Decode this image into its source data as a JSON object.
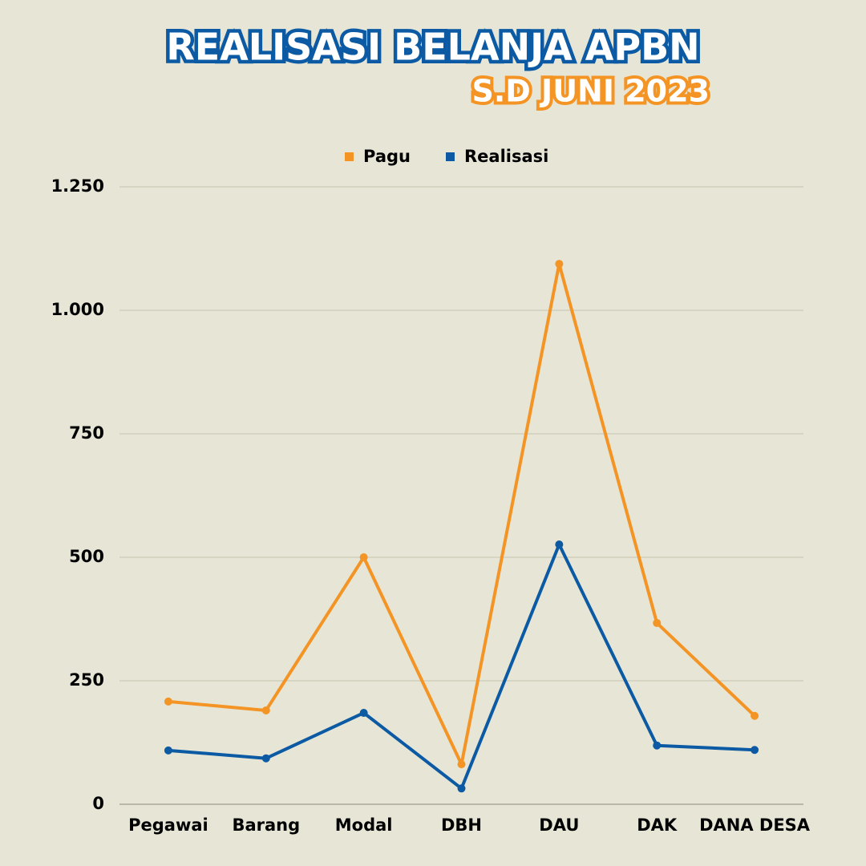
{
  "chart_data": {
    "type": "line",
    "title": "REALISASI BELANJA APBN",
    "subtitle": "S.D JUNI 2023",
    "categories": [
      "Pegawai",
      "Barang",
      "Modal",
      "DBH",
      "DAU",
      "DAK",
      "DANA DESA"
    ],
    "series": [
      {
        "name": "Pagu",
        "color": "#f39425",
        "values": [
          208,
          190,
          500,
          81,
          1094,
          367,
          179
        ]
      },
      {
        "name": "Realisasi",
        "color": "#0b5aa3",
        "values": [
          109,
          93,
          185,
          32,
          526,
          119,
          110
        ]
      }
    ],
    "ylim": [
      0,
      1250
    ],
    "yticks": [
      0,
      250,
      500,
      750,
      {
        "value": 1000,
        "label": "1.000"
      },
      {
        "value": 1250,
        "label": "1.250"
      }
    ],
    "grid": true,
    "legend": "top"
  }
}
